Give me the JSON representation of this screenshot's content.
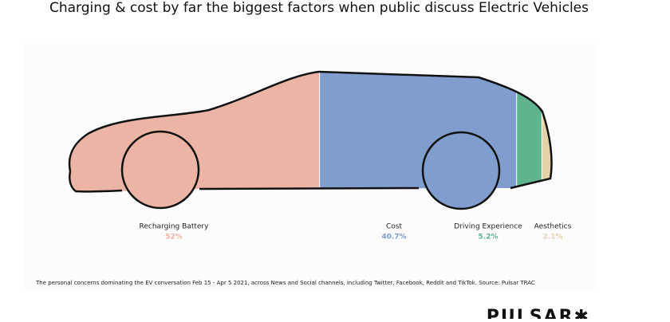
{
  "chart_data": {
    "type": "car-share",
    "title": "Charging & cost by far the biggest factors when public discuss Electric Vehicles",
    "categories": [
      "Recharging Battery",
      "Cost",
      "Driving Experience",
      "Aesthetics"
    ],
    "values": [
      52,
      40.7,
      5.2,
      2.1
    ],
    "value_labels": [
      "52%",
      "40.7%",
      "5.2%",
      "2.1%"
    ],
    "colors": [
      "#ecb4a4",
      "#819dce",
      "#5fb38f",
      "#e4d0a9"
    ],
    "note": "The personal concerns dominating the EV conversation Feb 15 - Apr 5 2021, across News and Social channels, including Twitter, Facebook, Reddit and TikTok. Source: Pulsar TRAC",
    "logo": "PULSAR✱"
  }
}
